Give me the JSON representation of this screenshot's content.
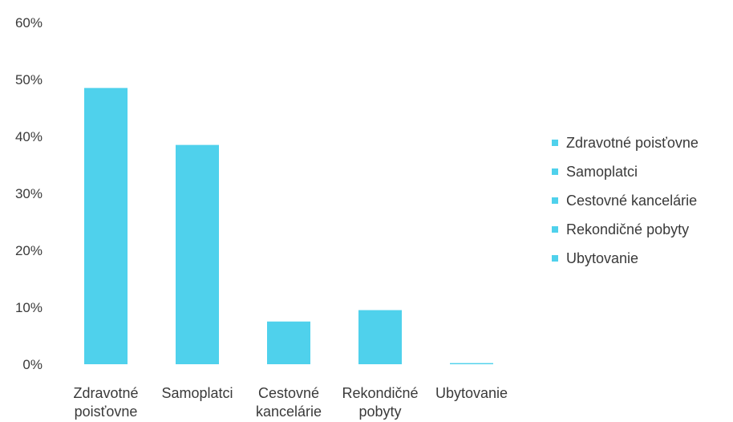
{
  "chart_data": {
    "type": "bar",
    "categories": [
      "Zdravotné poisťovne",
      "Samoplatci",
      "Cestovné kancelárie",
      "Rekondičné pobyty",
      "Ubytovanie"
    ],
    "category_tick_lines": [
      [
        "Zdravotné",
        "poisťovne"
      ],
      [
        "Samoplatci"
      ],
      [
        "Cestovné",
        "kancelárie"
      ],
      [
        "Rekondičné",
        "pobyty"
      ],
      [
        "Ubytovanie"
      ]
    ],
    "values": [
      48.5,
      38.5,
      7.5,
      9.5,
      0.2
    ],
    "y_ticks": [
      "0%",
      "10%",
      "20%",
      "30%",
      "40%",
      "50%",
      "60%"
    ],
    "ylim": [
      0,
      60
    ],
    "unit": "%",
    "grid": false,
    "legend_position": "right",
    "legend": [
      "Zdravotné poisťovne",
      "Samoplatci",
      "Cestovné kancelárie",
      "Rekondičné pobyty",
      "Ubytovanie"
    ],
    "color": "#4fd1ec"
  }
}
